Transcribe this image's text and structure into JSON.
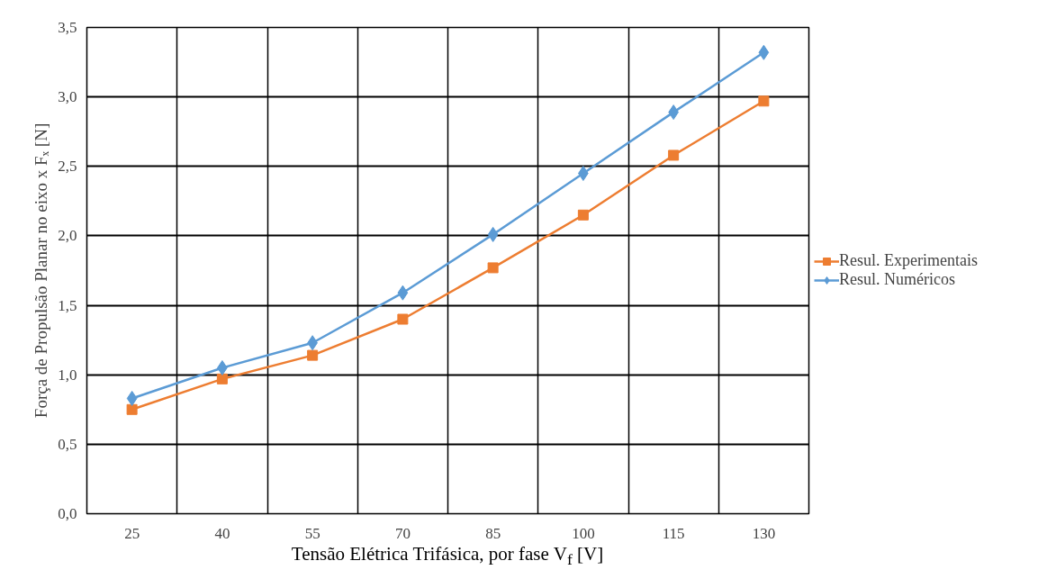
{
  "chart_data": {
    "type": "line",
    "xlabel": "Tensão Elétrica Trifásica, por fase V$_{f}$ [V]",
    "ylabel": "Força de Propulsão Planar no eixo x Fₓ [N]",
    "categories": [
      "25",
      "40",
      "55",
      "70",
      "85",
      "100",
      "115",
      "130"
    ],
    "series": [
      {
        "name": "Resul. Experimentais",
        "color": "#ed7d31",
        "marker": "square",
        "values": [
          0.75,
          0.97,
          1.14,
          1.4,
          1.77,
          2.15,
          2.58,
          2.97
        ]
      },
      {
        "name": "Resul. Numéricos",
        "color": "#5b9bd5",
        "marker": "diamond",
        "values": [
          0.83,
          1.05,
          1.23,
          1.59,
          2.01,
          2.45,
          2.89,
          3.32
        ]
      }
    ],
    "ylim": [
      0,
      3.5
    ],
    "yticks": [
      {
        "value": 0,
        "label": "0,0"
      },
      {
        "value": 0.5,
        "label": "0,5"
      },
      {
        "value": 1,
        "label": "1,0"
      },
      {
        "value": 1.5,
        "label": "1,5"
      },
      {
        "value": 2,
        "label": "2,0"
      },
      {
        "value": 2.5,
        "label": "2,5"
      },
      {
        "value": 3,
        "label": "3,0"
      },
      {
        "value": 3.5,
        "label": "3,5"
      }
    ],
    "grid": true,
    "legend": "right",
    "line_style": "solid"
  }
}
